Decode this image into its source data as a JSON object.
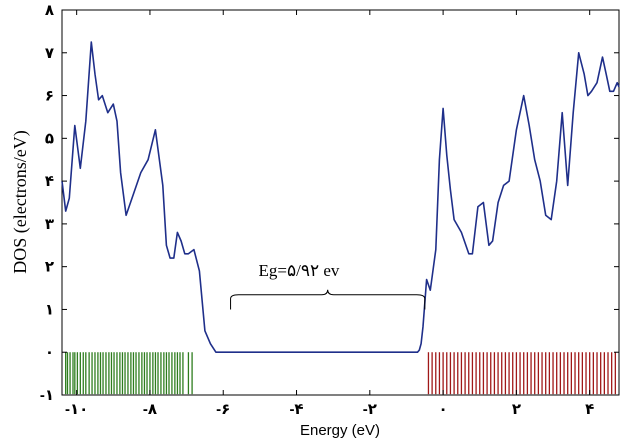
{
  "chart_data": {
    "type": "line",
    "xlabel": "Energy (eV)",
    "ylabel": "DOS (electrons/eV)",
    "xlim": [
      -10.4,
      4.8
    ],
    "ylim": [
      -1,
      8
    ],
    "x_ticks": [
      -10,
      -8,
      -6,
      -4,
      -2,
      0,
      2,
      4
    ],
    "x_tick_labels": [
      "-۱۰",
      "-۸",
      "-۶",
      "-۴",
      "-۲",
      "۰",
      "۲",
      "۴"
    ],
    "y_ticks": [
      -1,
      0,
      1,
      2,
      3,
      4,
      5,
      6,
      7,
      8
    ],
    "y_tick_labels": [
      "-۱",
      "۰",
      "۱",
      "۲",
      "۳",
      "۴",
      "۵",
      "۶",
      "۷",
      "۸"
    ],
    "annotation": "Eg=۵/۹۲ ev",
    "gap_bracket": [
      -5.8,
      -0.5
    ],
    "line_color": "#1f2f8a",
    "series": [
      {
        "x": [
          -10.4,
          -10.3,
          -10.2,
          -10.05,
          -9.9,
          -9.75,
          -9.6,
          -9.5,
          -9.4,
          -9.3,
          -9.15,
          -9.0,
          -8.9,
          -8.8,
          -8.65,
          -8.45,
          -8.25,
          -8.05,
          -7.85,
          -7.65,
          -7.55,
          -7.45,
          -7.35,
          -7.25,
          -7.15,
          -7.05,
          -6.95,
          -6.8,
          -6.65,
          -6.5,
          -6.35,
          -6.2,
          -6.1,
          -6.0,
          -5.9,
          -5.8,
          -5.7,
          -0.7,
          -0.65,
          -0.6,
          -0.55,
          -0.45,
          -0.35,
          -0.2,
          -0.1,
          0.0,
          0.1,
          0.2,
          0.3,
          0.5,
          0.7,
          0.8,
          0.95,
          1.1,
          1.25,
          1.35,
          1.5,
          1.65,
          1.8,
          2.0,
          2.2,
          2.35,
          2.5,
          2.65,
          2.8,
          2.95,
          3.1,
          3.25,
          3.4,
          3.55,
          3.7,
          3.85,
          3.95,
          4.05,
          4.2,
          4.35,
          4.45,
          4.55,
          4.65,
          4.75,
          4.8
        ],
        "y": [
          4.0,
          3.3,
          3.6,
          5.3,
          4.3,
          5.4,
          7.25,
          6.5,
          5.9,
          6.0,
          5.6,
          5.8,
          5.4,
          4.2,
          3.2,
          3.7,
          4.2,
          4.5,
          5.2,
          3.9,
          2.5,
          2.2,
          2.2,
          2.8,
          2.6,
          2.3,
          2.3,
          2.4,
          1.9,
          0.5,
          0.2,
          0.0,
          0.0,
          0.0,
          0.0,
          0.0,
          0.0,
          0.0,
          0.05,
          0.2,
          0.6,
          1.7,
          1.45,
          2.4,
          4.5,
          5.7,
          4.6,
          3.8,
          3.1,
          2.8,
          2.3,
          2.3,
          3.4,
          3.5,
          2.5,
          2.6,
          3.5,
          3.9,
          4.0,
          5.2,
          6.0,
          5.3,
          4.5,
          4.0,
          3.2,
          3.1,
          4.0,
          5.6,
          3.9,
          5.6,
          7.0,
          6.5,
          6.0,
          6.1,
          6.3,
          6.9,
          6.5,
          6.1,
          6.1,
          6.3,
          6.2
        ]
      }
    ],
    "level_bars": {
      "green": [
        -10.3,
        -10.25,
        -10.18,
        -10.1,
        -10.05,
        -9.98,
        -9.9,
        -9.82,
        -9.75,
        -9.66,
        -9.58,
        -9.5,
        -9.42,
        -9.35,
        -9.28,
        -9.2,
        -9.12,
        -9.05,
        -8.98,
        -8.9,
        -8.82,
        -8.75,
        -8.68,
        -8.6,
        -8.52,
        -8.45,
        -8.38,
        -8.3,
        -8.22,
        -8.15,
        -8.08,
        -8.0,
        -7.92,
        -7.85,
        -7.78,
        -7.7,
        -7.62,
        -7.55,
        -7.48,
        -7.4,
        -7.32,
        -7.25,
        -7.18,
        -7.1,
        -6.95,
        -6.85
      ],
      "red": [
        -0.4,
        -0.3,
        -0.2,
        -0.1,
        0.0,
        0.1,
        0.2,
        0.3,
        0.4,
        0.5,
        0.6,
        0.7,
        0.8,
        0.9,
        1.0,
        1.1,
        1.2,
        1.3,
        1.4,
        1.5,
        1.6,
        1.7,
        1.8,
        1.9,
        2.0,
        2.1,
        2.2,
        2.3,
        2.4,
        2.5,
        2.6,
        2.7,
        2.8,
        2.9,
        3.0,
        3.1,
        3.2,
        3.3,
        3.4,
        3.5,
        3.6,
        3.7,
        3.8,
        3.9,
        4.0,
        4.1,
        4.2,
        4.3,
        4.4,
        4.5,
        4.6,
        4.7
      ],
      "green_color": "#2e7d1e",
      "red_color": "#a01818"
    }
  }
}
